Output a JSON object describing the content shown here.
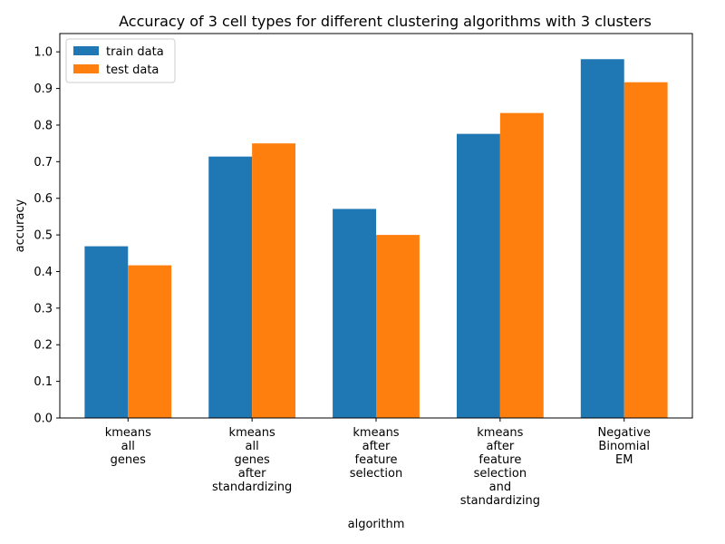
{
  "chart_data": {
    "type": "bar",
    "title": "Accuracy of 3 cell types for different clustering algorithms with 3 clusters",
    "xlabel": "algorithm",
    "ylabel": "accuracy",
    "ylim": [
      0,
      1.05
    ],
    "yticks": [
      0.0,
      0.1,
      0.2,
      0.3,
      0.4,
      0.5,
      0.6,
      0.7,
      0.8,
      0.9,
      1.0
    ],
    "ytick_labels": [
      "0.0",
      "0.1",
      "0.2",
      "0.3",
      "0.4",
      "0.5",
      "0.6",
      "0.7",
      "0.8",
      "0.9",
      "1.0"
    ],
    "categories": [
      "kmeans all genes",
      "kmeans all genes after standardizing",
      "kmeans after feature selection",
      "kmeans after feature selection and standardizing",
      "Negative Binomial EM"
    ],
    "category_lines": [
      [
        "kmeans",
        "all",
        "genes"
      ],
      [
        "kmeans",
        "all",
        "genes",
        "after",
        "standardizing"
      ],
      [
        "kmeans",
        "after",
        "feature",
        "selection"
      ],
      [
        "kmeans",
        "after",
        "feature",
        "selection",
        "and",
        "standardizing"
      ],
      [
        "Negative",
        "Binomial",
        "EM"
      ]
    ],
    "series": [
      {
        "name": "train data",
        "color": "#1f77b4",
        "values": [
          0.469,
          0.714,
          0.571,
          0.776,
          0.98
        ]
      },
      {
        "name": "test data",
        "color": "#ff7f0e",
        "values": [
          0.417,
          0.75,
          0.5,
          0.833,
          0.917
        ]
      }
    ],
    "legend_position": "upper-left",
    "grid": false
  }
}
